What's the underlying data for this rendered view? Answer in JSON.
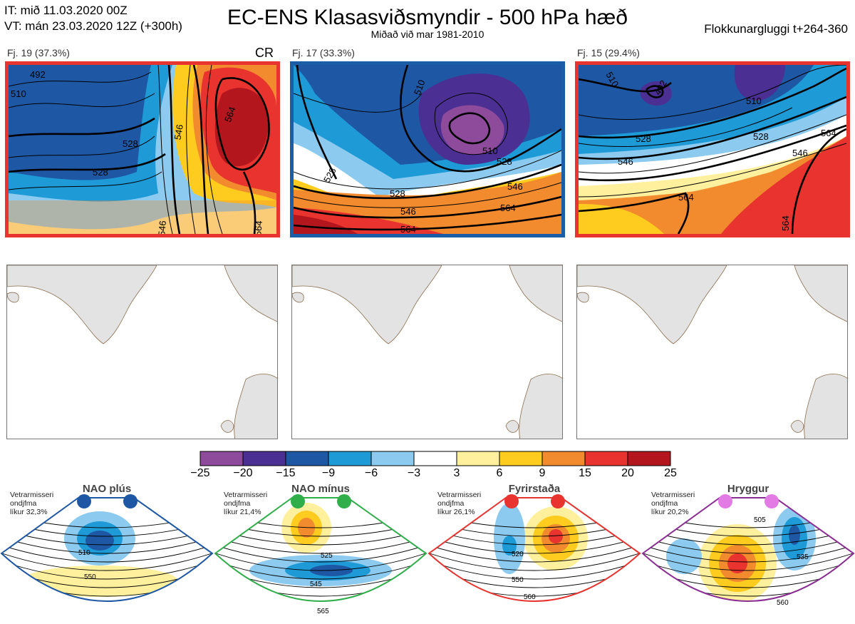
{
  "header": {
    "it_line": "IT: mið 11.03.2020 00Z",
    "vt_line": "VT: mán 23.03.2020 12Z  (+300h)",
    "title": "EC-ENS Klasasviðsmyndir - 500 hPa hæð",
    "subtitle": "Miðað við mar 1981-2010",
    "window": "Flokkunargluggi t+264-360"
  },
  "panels": [
    {
      "label": "Fj. 19 (37.3%)",
      "tag": "CR",
      "border_color": "#e8332e",
      "contours": [
        "492",
        "510",
        "528",
        "528",
        "546",
        "564",
        "546",
        "564"
      ]
    },
    {
      "label": "Fj. 17 (33.3%)",
      "tag": "",
      "border_color": "#1a5ea8",
      "contours": [
        "510",
        "510",
        "528",
        "528",
        "546",
        "546",
        "564",
        "564",
        "528"
      ]
    },
    {
      "label": "Fj. 15 (29.4%)",
      "tag": "",
      "border_color": "#e8332e",
      "contours": [
        "510",
        "492",
        "510",
        "528",
        "528",
        "546",
        "546",
        "564",
        "564",
        "564"
      ]
    }
  ],
  "colorbar": {
    "colors": [
      "#8e4b9c",
      "#4b2f93",
      "#1e58a5",
      "#1e9ad6",
      "#8ccbef",
      "#ffffff",
      "#fff09e",
      "#fdcc1f",
      "#f28a2e",
      "#e8332e",
      "#b3171d"
    ],
    "labels": [
      "−25",
      "−20",
      "−15",
      "−9",
      "−6",
      "−3",
      "3",
      "6",
      "9",
      "15",
      "20",
      "25"
    ]
  },
  "regimes": [
    {
      "name": "NAO plús",
      "note1": "Vetrarmisseri",
      "note2": "ondjfma",
      "note3": "líkur 32,3%",
      "dot_color": "#1e58a5",
      "fan_color": "#1e58a5",
      "contours": [
        "510",
        "550"
      ]
    },
    {
      "name": "NAO mínus",
      "note1": "Vetrarmisseri",
      "note2": "ondjfma",
      "note3": "líkur 21,4%",
      "dot_color": "#2fae4a",
      "fan_color": "#2fae4a",
      "contours": [
        "525",
        "545",
        "565"
      ]
    },
    {
      "name": "Fyrirstaða",
      "note1": "Vetrarmisseri",
      "note2": "ondjfma",
      "note3": "líkur 26,1%",
      "dot_color": "#e8332e",
      "fan_color": "#e8332e",
      "contours": [
        "520",
        "550",
        "560"
      ]
    },
    {
      "name": "Hryggur",
      "note1": "Vetrarmisseri",
      "note2": "ondjfma",
      "note3": "líkur 20,2%",
      "dot_color": "#e37be5",
      "fan_color": "#8b2e93",
      "contours": [
        "505",
        "535",
        "560"
      ]
    }
  ]
}
